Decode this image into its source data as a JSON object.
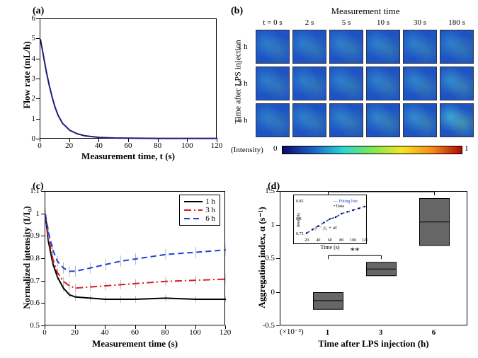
{
  "panel_a": {
    "label": "(a)",
    "type": "line",
    "xlabel": "Measurement time, t (s)",
    "ylabel": "Flow rate (mL/h)",
    "xlim": [
      0,
      120
    ],
    "ylim": [
      0,
      6
    ],
    "xticks": [
      0,
      20,
      40,
      60,
      80,
      100,
      120
    ],
    "yticks": [
      0,
      1,
      2,
      3,
      4,
      5,
      6
    ],
    "line_color": "#1a1a7a",
    "line_width": 2,
    "data_x": [
      0,
      2,
      4,
      6,
      8,
      10,
      12,
      15,
      20,
      25,
      30,
      40,
      50,
      60,
      80,
      100,
      120
    ],
    "data_y": [
      5.0,
      4.2,
      3.4,
      2.7,
      2.1,
      1.6,
      1.2,
      0.8,
      0.45,
      0.28,
      0.18,
      0.1,
      0.07,
      0.06,
      0.05,
      0.05,
      0.05
    ],
    "background_color": "#ffffff"
  },
  "panel_b": {
    "label": "(b)",
    "type": "heatmap",
    "title": "Measurement time",
    "col_headers": [
      "t = 0 s",
      "2 s",
      "5 s",
      "10 s",
      "30 s",
      "180 s"
    ],
    "row_headers": [
      "1 h",
      "3 h",
      "6 h"
    ],
    "row_axis_label": "Time after LPS injection",
    "colorbar_label": "(Intensity)",
    "colorbar_min": "0",
    "colorbar_max": "1",
    "colorbar_stops": [
      "#0a0a6b",
      "#1e5fc3",
      "#2bd3d3",
      "#7fe850",
      "#f7e326",
      "#f78d1a",
      "#b00808"
    ],
    "intensity_grid": [
      [
        0.15,
        0.15,
        0.16,
        0.16,
        0.16,
        0.16
      ],
      [
        0.15,
        0.15,
        0.16,
        0.16,
        0.17,
        0.2
      ],
      [
        0.15,
        0.16,
        0.17,
        0.18,
        0.2,
        0.3
      ]
    ],
    "thumb_base_color": "#1e53c3"
  },
  "panel_c": {
    "label": "(c)",
    "type": "line",
    "xlabel": "Measurement time (s)",
    "ylabel": "Normalized intensity (I/I₀)",
    "xlim": [
      0,
      120
    ],
    "ylim": [
      0.5,
      1.1
    ],
    "xticks": [
      0,
      20,
      40,
      60,
      80,
      100,
      120
    ],
    "yticks": [
      0.5,
      0.6,
      0.7,
      0.8,
      0.9,
      1.0,
      1.1
    ],
    "legend_items": [
      {
        "label": "1 h",
        "color": "#000000",
        "dash": "solid"
      },
      {
        "label": "3 h",
        "color": "#d81e1e",
        "dash": "dashdot"
      },
      {
        "label": "6 h",
        "color": "#1e3fd8",
        "dash": "dash"
      }
    ],
    "series": {
      "1h": {
        "x": [
          0,
          2,
          5,
          8,
          12,
          16,
          20,
          30,
          40,
          50,
          60,
          80,
          100,
          120
        ],
        "y": [
          1.0,
          0.88,
          0.78,
          0.72,
          0.67,
          0.64,
          0.63,
          0.625,
          0.62,
          0.62,
          0.62,
          0.625,
          0.62,
          0.62
        ],
        "err": 0.015
      },
      "3h": {
        "x": [
          0,
          2,
          5,
          8,
          12,
          16,
          20,
          30,
          40,
          50,
          60,
          80,
          100,
          120
        ],
        "y": [
          1.0,
          0.9,
          0.8,
          0.74,
          0.7,
          0.68,
          0.67,
          0.675,
          0.68,
          0.685,
          0.69,
          0.7,
          0.705,
          0.71
        ],
        "err": 0.02
      },
      "6h": {
        "x": [
          0,
          2,
          5,
          8,
          12,
          16,
          20,
          30,
          40,
          50,
          60,
          80,
          100,
          120
        ],
        "y": [
          1.0,
          0.92,
          0.84,
          0.79,
          0.76,
          0.745,
          0.745,
          0.76,
          0.775,
          0.79,
          0.8,
          0.82,
          0.83,
          0.84
        ],
        "err": 0.025
      }
    }
  },
  "panel_d": {
    "label": "(d)",
    "type": "boxplot",
    "xlabel": "Time after LPS injection (h)",
    "ylabel": "Aggregation index, α (s⁻¹)",
    "ylim": [
      -0.5,
      1.5
    ],
    "yticks": [
      -0.5,
      0,
      0.5,
      1.0,
      1.5
    ],
    "y_scale_note": "(×10⁻³)",
    "categories": [
      "1",
      "3",
      "6"
    ],
    "boxes": [
      {
        "low": -0.25,
        "mid": -0.12,
        "high": 0.0
      },
      {
        "low": 0.25,
        "mid": 0.35,
        "high": 0.45
      },
      {
        "low": 0.7,
        "mid": 1.05,
        "high": 1.4
      }
    ],
    "box_color": "#666666",
    "sig_marks": [
      {
        "from": 0,
        "to": 1,
        "label": "**",
        "y": 0.55
      },
      {
        "from": 0,
        "to": 2,
        "label": "*",
        "y": 1.5
      }
    ],
    "inset": {
      "xlabel": "Time (s)",
      "ylabel": "Intensity",
      "xlim": [
        20,
        120
      ],
      "ylim": [
        0.75,
        0.85
      ],
      "xticks": [
        20,
        40,
        60,
        80,
        100,
        120
      ],
      "yticks": [
        0.75,
        0.8,
        0.85
      ],
      "legend": [
        "Fitting line",
        "Data"
      ],
      "formula": "y = y₀ + αt",
      "fit_color": "#1e3fd8",
      "data_color": "#000000",
      "data_x": [
        20,
        30,
        40,
        50,
        60,
        70,
        80,
        90,
        100,
        110,
        120
      ],
      "data_y": [
        0.755,
        0.765,
        0.775,
        0.785,
        0.795,
        0.8,
        0.81,
        0.815,
        0.82,
        0.825,
        0.83
      ]
    }
  }
}
